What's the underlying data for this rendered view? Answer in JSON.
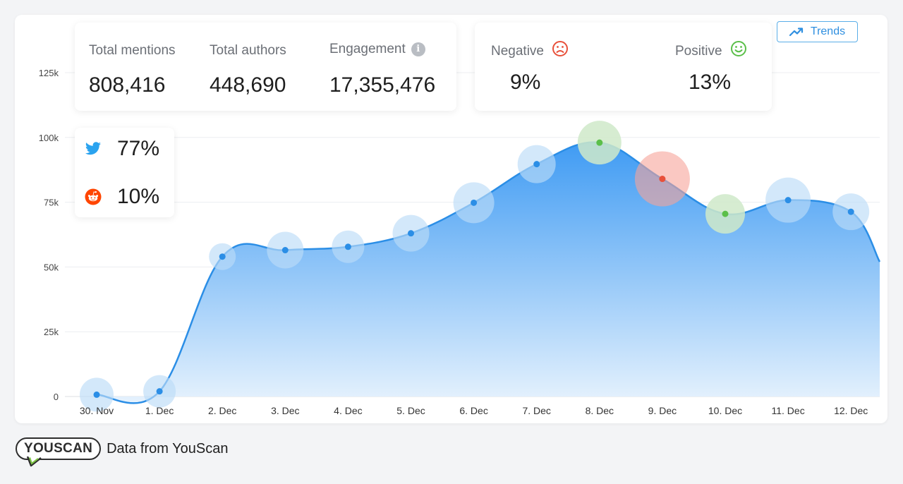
{
  "stats": {
    "total_mentions": {
      "label": "Total mentions",
      "value": "808,416"
    },
    "total_authors": {
      "label": "Total authors",
      "value": "448,690"
    },
    "engagement": {
      "label": "Engagement",
      "value": "17,355,476"
    }
  },
  "sentiment": {
    "negative": {
      "label": "Negative",
      "value": "9%",
      "color": "#e8503a"
    },
    "positive": {
      "label": "Positive",
      "value": "13%",
      "color": "#5bbf4a"
    }
  },
  "sources": [
    {
      "name": "twitter",
      "value": "77%",
      "color": "#2aa3ef",
      "icon": "twitter-icon"
    },
    {
      "name": "reddit",
      "value": "10%",
      "color": "#ff4500",
      "icon": "reddit-icon"
    }
  ],
  "trends_button": {
    "label": "Trends",
    "icon": "trending-up-icon"
  },
  "footer": {
    "logo_text": "YOUSCAN",
    "text": "Data from YouScan"
  },
  "chart_data": {
    "type": "area",
    "categories": [
      "30. Nov",
      "1. Dec",
      "2. Dec",
      "3. Dec",
      "4. Dec",
      "5. Dec",
      "6. Dec",
      "7. Dec",
      "8. Dec",
      "9. Dec",
      "10. Dec",
      "11. Dec",
      "12. Dec"
    ],
    "values": [
      700,
      2000,
      54000,
      56500,
      57800,
      63000,
      74800,
      89700,
      98000,
      84000,
      70500,
      75800,
      71300
    ],
    "end_value": 52000,
    "point_highlight": [
      "neutral",
      "neutral",
      "neutral",
      "neutral",
      "neutral",
      "neutral",
      "neutral",
      "neutral",
      "positive",
      "negative",
      "positive",
      "neutral",
      "neutral"
    ],
    "y_ticks": [
      "0",
      "25k",
      "50k",
      "75k",
      "100k",
      "125k"
    ],
    "y_tick_values": [
      0,
      25000,
      50000,
      75000,
      100000,
      125000
    ],
    "ylim": [
      0,
      125000
    ],
    "grid": true,
    "colors": {
      "line": "#2b8ee6",
      "fill_top": "#4ea3f5",
      "fill_bottom": "#e3f0fd",
      "halo": "#bcdcf7"
    }
  }
}
